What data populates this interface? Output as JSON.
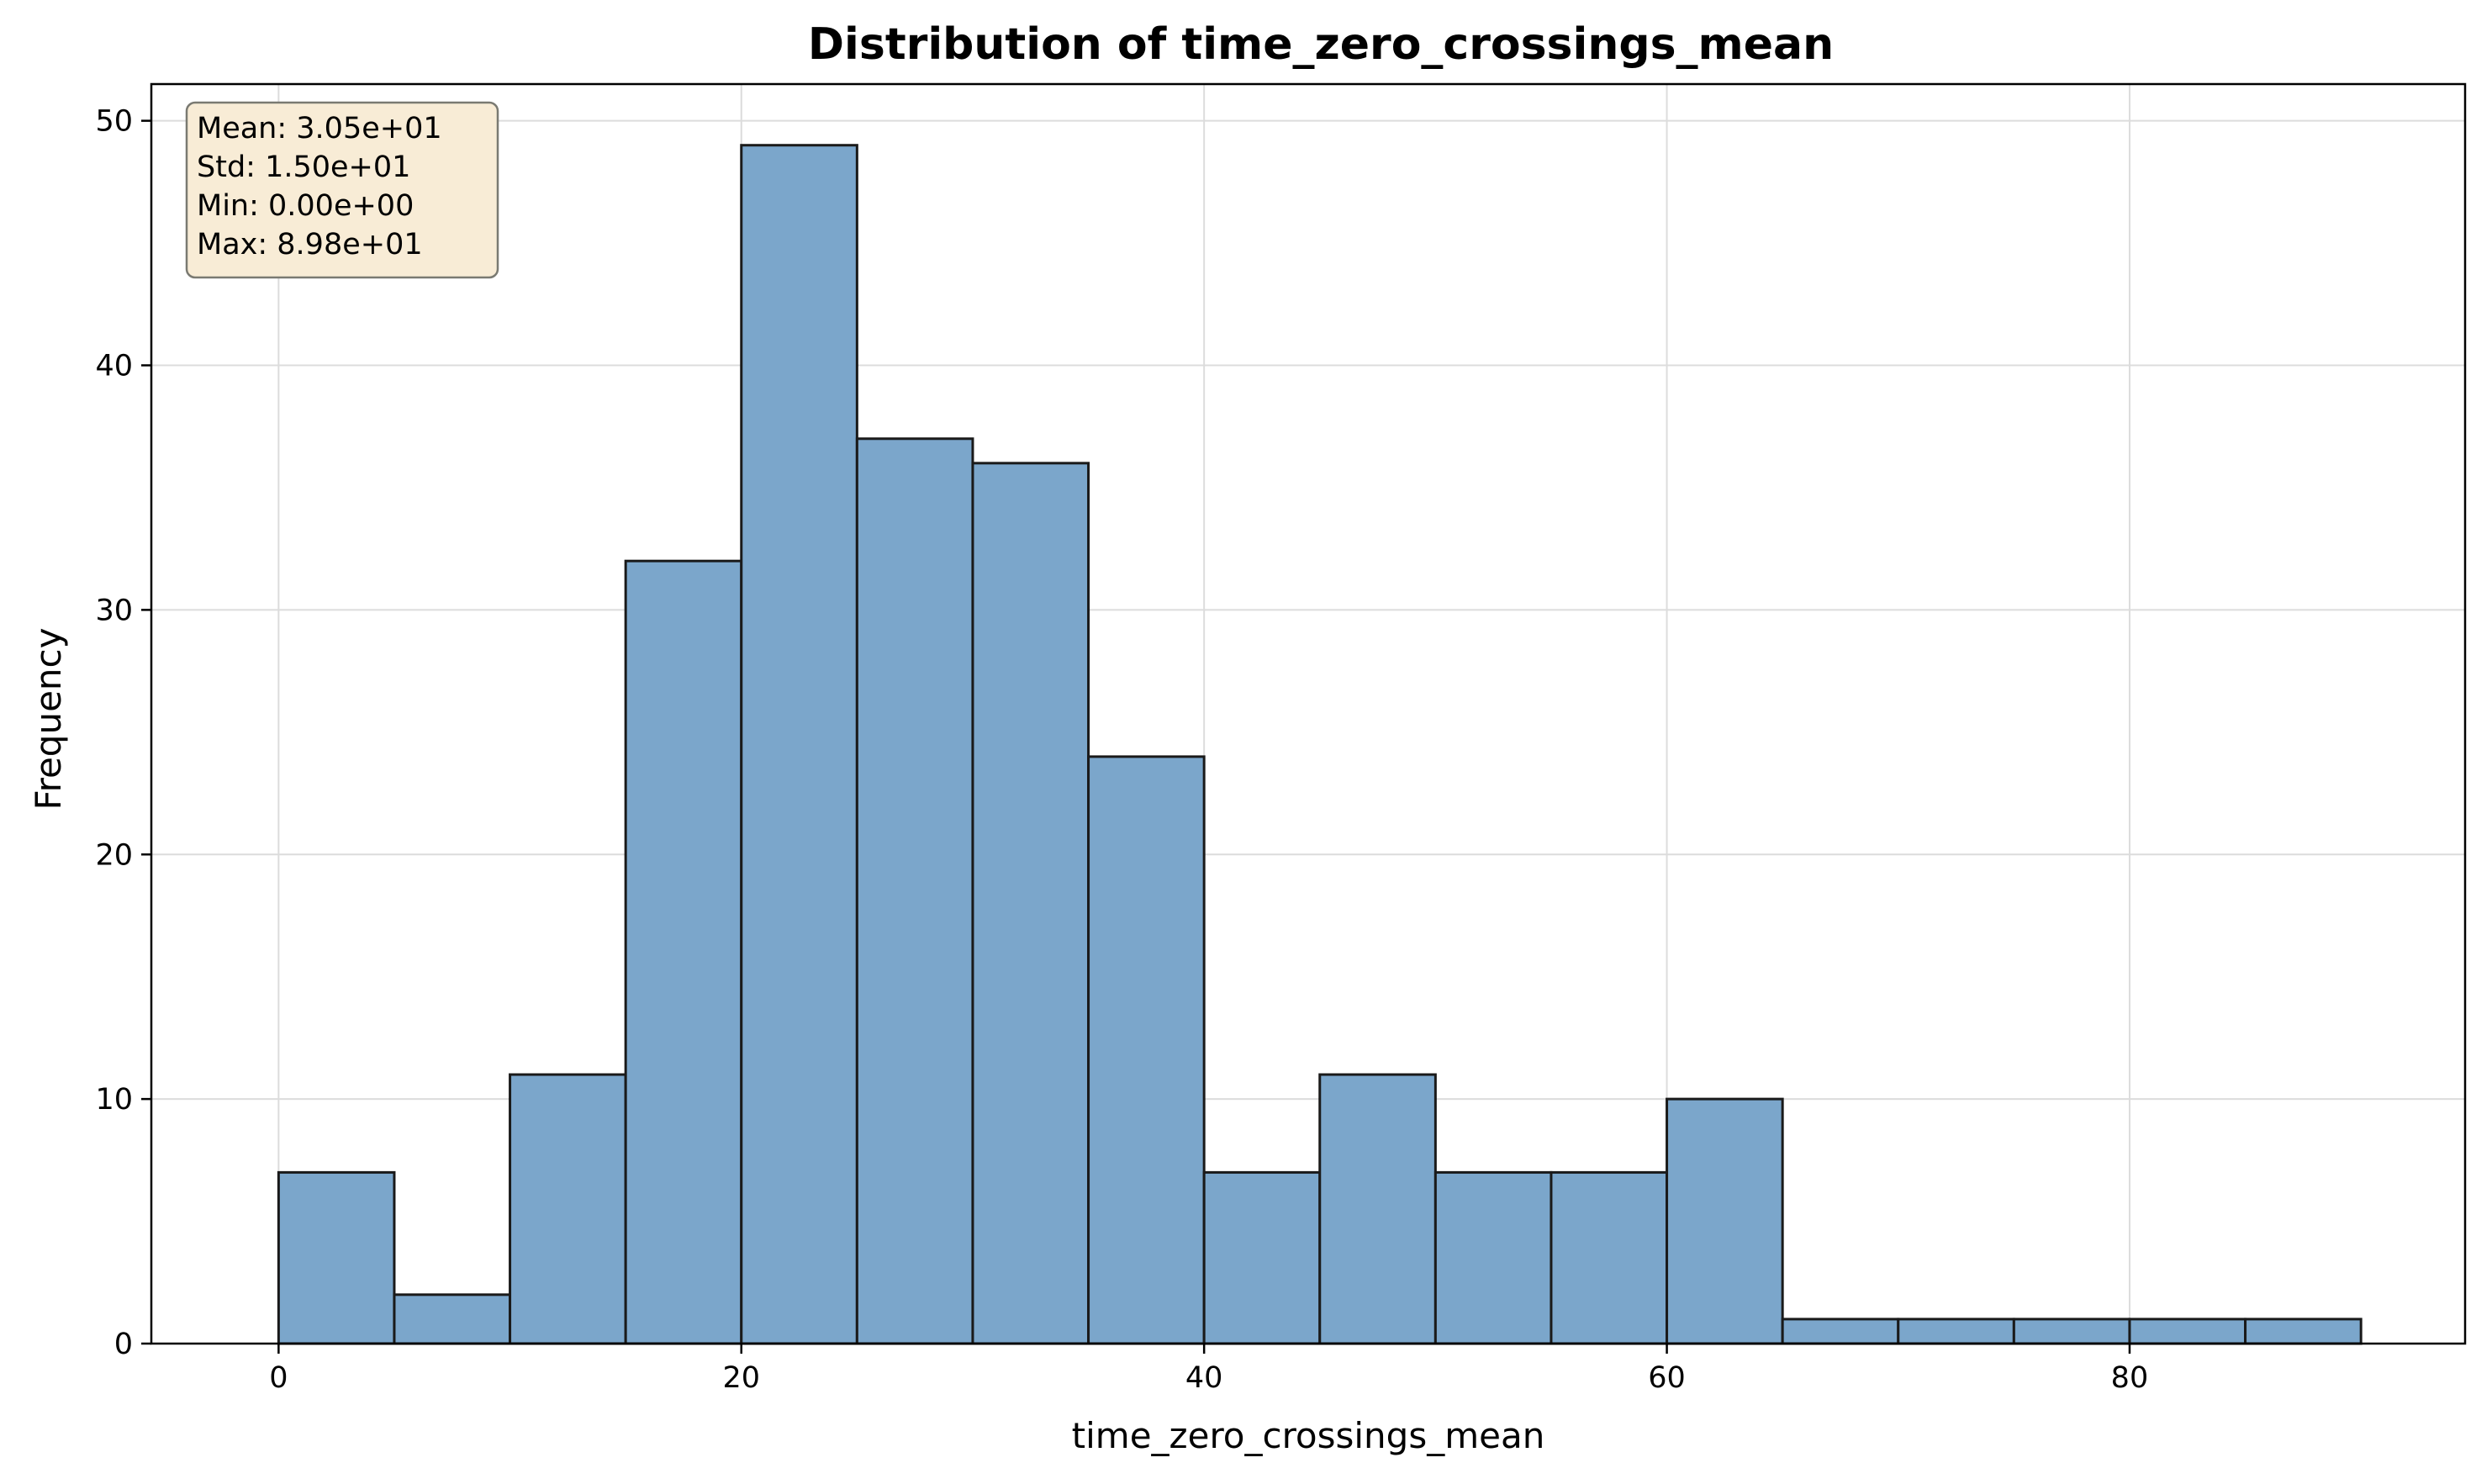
{
  "chart_data": {
    "type": "bar",
    "title": "Distribution of time_zero_crossings_mean",
    "xlabel": "time_zero_crossings_mean",
    "ylabel": "Frequency",
    "bin_edges": [
      0,
      5,
      10,
      15,
      20,
      25,
      30,
      35,
      40,
      45,
      50,
      55,
      60,
      65,
      70,
      75,
      80,
      85,
      90
    ],
    "values": [
      7,
      2,
      11,
      32,
      49,
      37,
      36,
      24,
      7,
      11,
      7,
      7,
      10,
      1,
      1,
      1,
      1,
      1
    ],
    "xlim": [
      -5.5,
      94.5
    ],
    "ylim": [
      0,
      51.5
    ],
    "xticks": [
      0,
      20,
      40,
      60,
      80
    ],
    "yticks": [
      0,
      10,
      20,
      30,
      40,
      50
    ],
    "grid": true,
    "bar_color": "#7ba6cb",
    "bar_edge_color": "#1a1a1a",
    "stats_box": {
      "lines": [
        "Mean: 3.05e+01",
        "Std: 1.50e+01",
        "Min: 0.00e+00",
        "Max: 8.98e+01"
      ],
      "background": "#f8ecd6",
      "border": "#7a7a72",
      "placement": "top-left"
    }
  }
}
